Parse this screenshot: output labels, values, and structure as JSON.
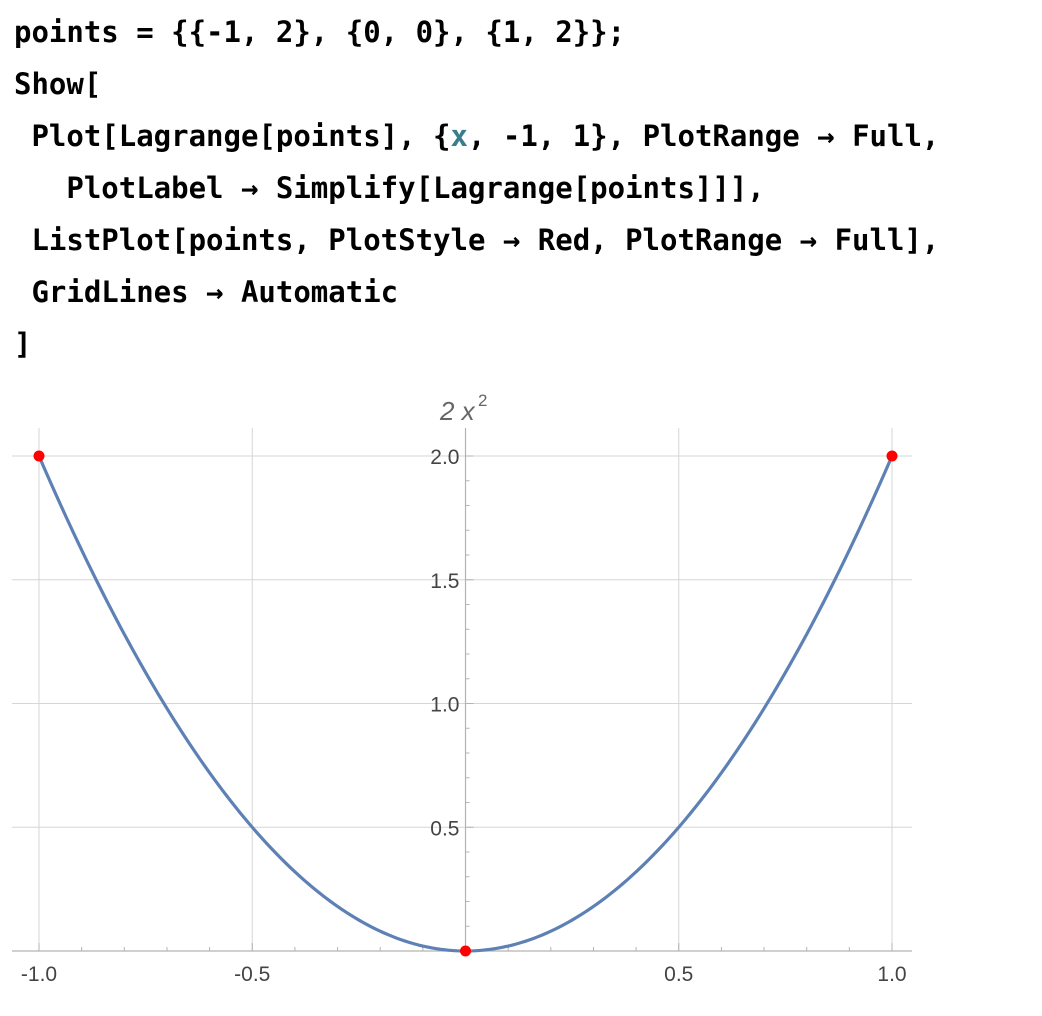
{
  "code": {
    "lines": [
      [
        {
          "t": "points = {{-1, 2}, {0, 0}, {1, 2}};"
        }
      ],
      [
        {
          "t": "Show["
        }
      ],
      [
        {
          "t": " Plot[Lagrange[points], {"
        },
        {
          "t": "x",
          "v": true
        },
        {
          "t": ", -1, 1}, PlotRange → Full,"
        }
      ],
      [
        {
          "t": "   PlotLabel → Simplify[Lagrange[points]]],"
        }
      ],
      [
        {
          "t": " ListPlot[points, PlotStyle → Red, PlotRange → Full],"
        }
      ],
      [
        {
          "t": " GridLines → Automatic"
        }
      ],
      [
        {
          "t": "]"
        }
      ]
    ]
  },
  "chart_data": {
    "type": "line",
    "title": "2 x²",
    "title_base": "2 x",
    "title_exp": "2",
    "function": "2*x^2",
    "x": [
      -1.0,
      -0.9,
      -0.8,
      -0.7,
      -0.6,
      -0.5,
      -0.4,
      -0.3,
      -0.2,
      -0.1,
      0.0,
      0.1,
      0.2,
      0.3,
      0.4,
      0.5,
      0.6,
      0.7,
      0.8,
      0.9,
      1.0
    ],
    "series": [
      {
        "values": [
          2.0,
          1.62,
          1.28,
          0.98,
          0.72,
          0.5,
          0.32,
          0.18,
          0.08,
          0.02,
          0.0,
          0.02,
          0.08,
          0.18,
          0.32,
          0.5,
          0.72,
          0.98,
          1.28,
          1.62,
          2.0
        ],
        "color": "#5e81b5"
      }
    ],
    "points": [
      [
        -1,
        2
      ],
      [
        0,
        0
      ],
      [
        1,
        2
      ]
    ],
    "points_color": "#ff0000",
    "xlim": [
      -1,
      1
    ],
    "ylim": [
      0,
      2
    ],
    "xticks": [
      -1.0,
      -0.5,
      0.5,
      1.0
    ],
    "xtick_labels": [
      "-1.0",
      "-0.5",
      "0.5",
      "1.0"
    ],
    "yticks": [
      0.5,
      1.0,
      1.5,
      2.0
    ],
    "ytick_labels": [
      "0.5",
      "1.0",
      "1.5",
      "2.0"
    ],
    "grid": true,
    "xlabel": "",
    "ylabel": ""
  }
}
